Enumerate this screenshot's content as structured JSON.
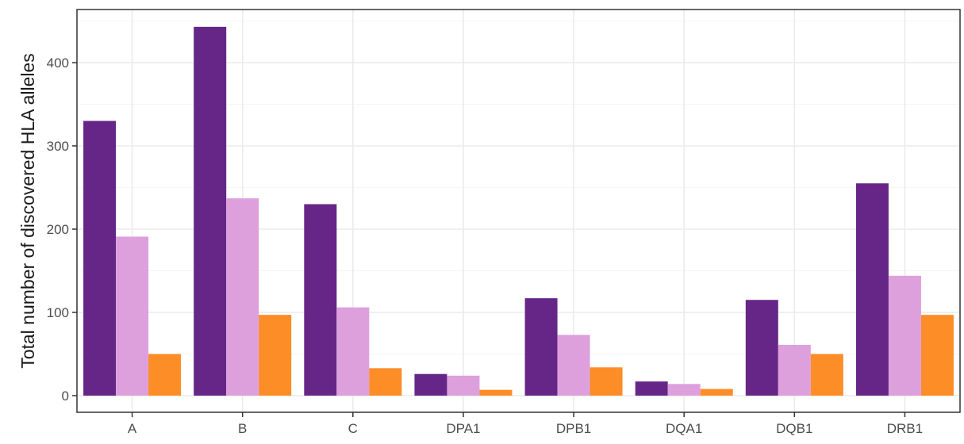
{
  "chart_data": {
    "type": "bar",
    "title": "",
    "xlabel": "",
    "ylabel": "Total number of discovered HLA alleles",
    "categories": [
      "A",
      "B",
      "C",
      "DPA1",
      "DPB1",
      "DQA1",
      "DQB1",
      "DRB1"
    ],
    "series": [
      {
        "color": "#662687",
        "values": [
          330,
          443,
          230,
          26,
          117,
          17,
          115,
          255
        ]
      },
      {
        "color": "#dda0dd",
        "values": [
          191,
          237,
          106,
          24,
          73,
          14,
          61,
          144
        ]
      },
      {
        "color": "#fd8d27",
        "values": [
          50,
          97,
          33,
          7,
          34,
          8,
          50,
          97
        ]
      }
    ],
    "ylim": [
      0,
      465
    ],
    "yticks": [
      0,
      100,
      200,
      300,
      400
    ],
    "grid": true,
    "legend": "none",
    "theme": {
      "panel_border": "#333333",
      "grid_major": "#ebebeb",
      "grid_minor": "#f5f5f5"
    }
  }
}
